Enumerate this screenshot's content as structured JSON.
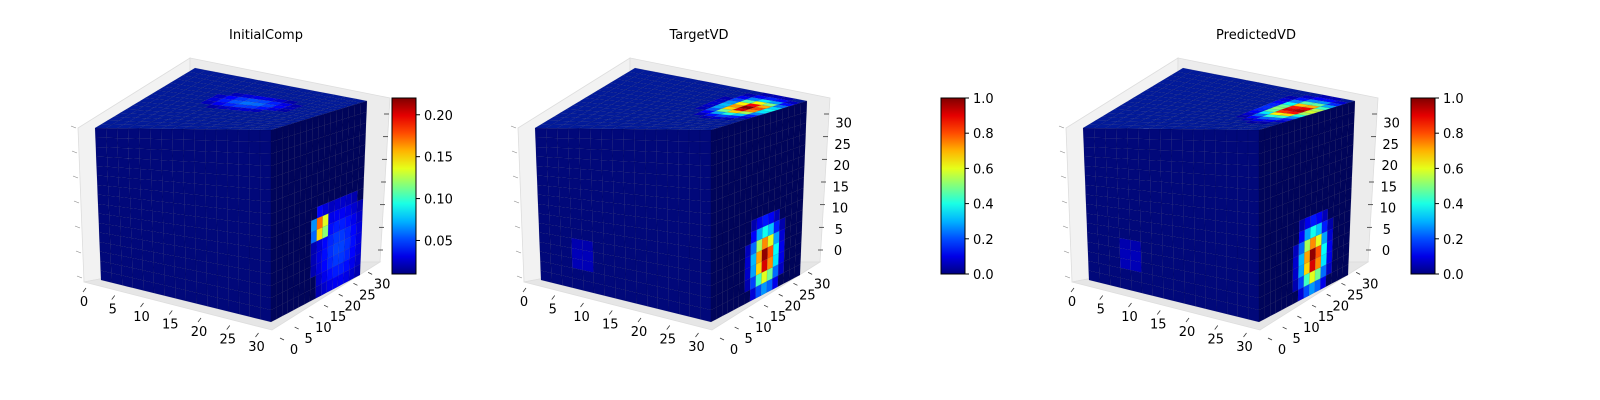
{
  "chart_data": [
    {
      "type": "voxel3d",
      "title": "InitialComp",
      "xlim": [
        0,
        32
      ],
      "ylim": [
        0,
        32
      ],
      "zlim": [
        0,
        32
      ],
      "x_ticks": [
        0,
        5,
        10,
        15,
        20,
        25,
        30
      ],
      "y_ticks": [
        0,
        5,
        10,
        15,
        20,
        25,
        30
      ],
      "z_ticks": [],
      "grid": true,
      "colorbar": {
        "min": 0.01,
        "max": 0.22,
        "ticks": [
          0.05,
          0.1,
          0.15,
          0.2
        ],
        "tick_labels": [
          "0.05",
          "0.10",
          "0.15",
          "0.20"
        ],
        "colormap": "jet"
      },
      "hotspots": [
        {
          "face": "top",
          "u": 0.55,
          "v": 0.4,
          "ru": 0.35,
          "rv": 0.22,
          "value": 0.06
        },
        {
          "face": "right",
          "u": 0.75,
          "v": 0.78,
          "ru": 0.45,
          "rv": 0.45,
          "value": 0.05
        },
        {
          "face": "right",
          "u": 0.55,
          "v": 0.62,
          "ru": 0.12,
          "rv": 0.1,
          "value": 0.21
        }
      ]
    },
    {
      "type": "voxel3d",
      "title": "TargetVD",
      "xlim": [
        0,
        32
      ],
      "ylim": [
        0,
        32
      ],
      "zlim": [
        0,
        32
      ],
      "x_ticks": [
        0,
        5,
        10,
        15,
        20,
        25,
        30
      ],
      "y_ticks": [
        0,
        5,
        10,
        15,
        20,
        25,
        30
      ],
      "z_ticks": [
        0,
        5,
        10,
        15,
        20,
        25,
        30
      ],
      "grid": true,
      "colorbar": {
        "min": 0.0,
        "max": 1.0,
        "ticks": [
          0.0,
          0.2,
          0.4,
          0.6,
          0.8,
          1.0
        ],
        "tick_labels": [
          "0.0",
          "0.2",
          "0.4",
          "0.6",
          "0.8",
          "1.0"
        ],
        "colormap": "jet"
      },
      "hotspots": [
        {
          "face": "top",
          "u": 0.85,
          "v": 0.35,
          "ru": 0.18,
          "rv": 0.28,
          "value": 1.0
        },
        {
          "face": "right",
          "u": 0.6,
          "v": 0.8,
          "ru": 0.18,
          "rv": 0.22,
          "value": 1.0
        },
        {
          "face": "front",
          "u": 0.25,
          "v": 0.8,
          "ru": 0.08,
          "rv": 0.25,
          "value": 0.08
        }
      ]
    },
    {
      "type": "voxel3d",
      "title": "PredictedVD",
      "xlim": [
        0,
        32
      ],
      "ylim": [
        0,
        32
      ],
      "zlim": [
        0,
        32
      ],
      "x_ticks": [
        0,
        5,
        10,
        15,
        20,
        25,
        30
      ],
      "y_ticks": [
        0,
        5,
        10,
        15,
        20,
        25,
        30
      ],
      "z_ticks": [
        0,
        5,
        10,
        15,
        20,
        25,
        30
      ],
      "grid": true,
      "colorbar": {
        "min": 0.0,
        "max": 1.0,
        "ticks": [
          0.0,
          0.2,
          0.4,
          0.6,
          0.8,
          1.0
        ],
        "tick_labels": [
          "0.0",
          "0.2",
          "0.4",
          "0.6",
          "0.8",
          "1.0"
        ],
        "colormap": "jet"
      },
      "hotspots": [
        {
          "face": "top",
          "u": 0.88,
          "v": 0.4,
          "ru": 0.18,
          "rv": 0.32,
          "value": 1.0
        },
        {
          "face": "right",
          "u": 0.6,
          "v": 0.8,
          "ru": 0.18,
          "rv": 0.22,
          "value": 1.0
        },
        {
          "face": "front",
          "u": 0.25,
          "v": 0.8,
          "ru": 0.08,
          "rv": 0.25,
          "value": 0.08
        }
      ]
    }
  ]
}
